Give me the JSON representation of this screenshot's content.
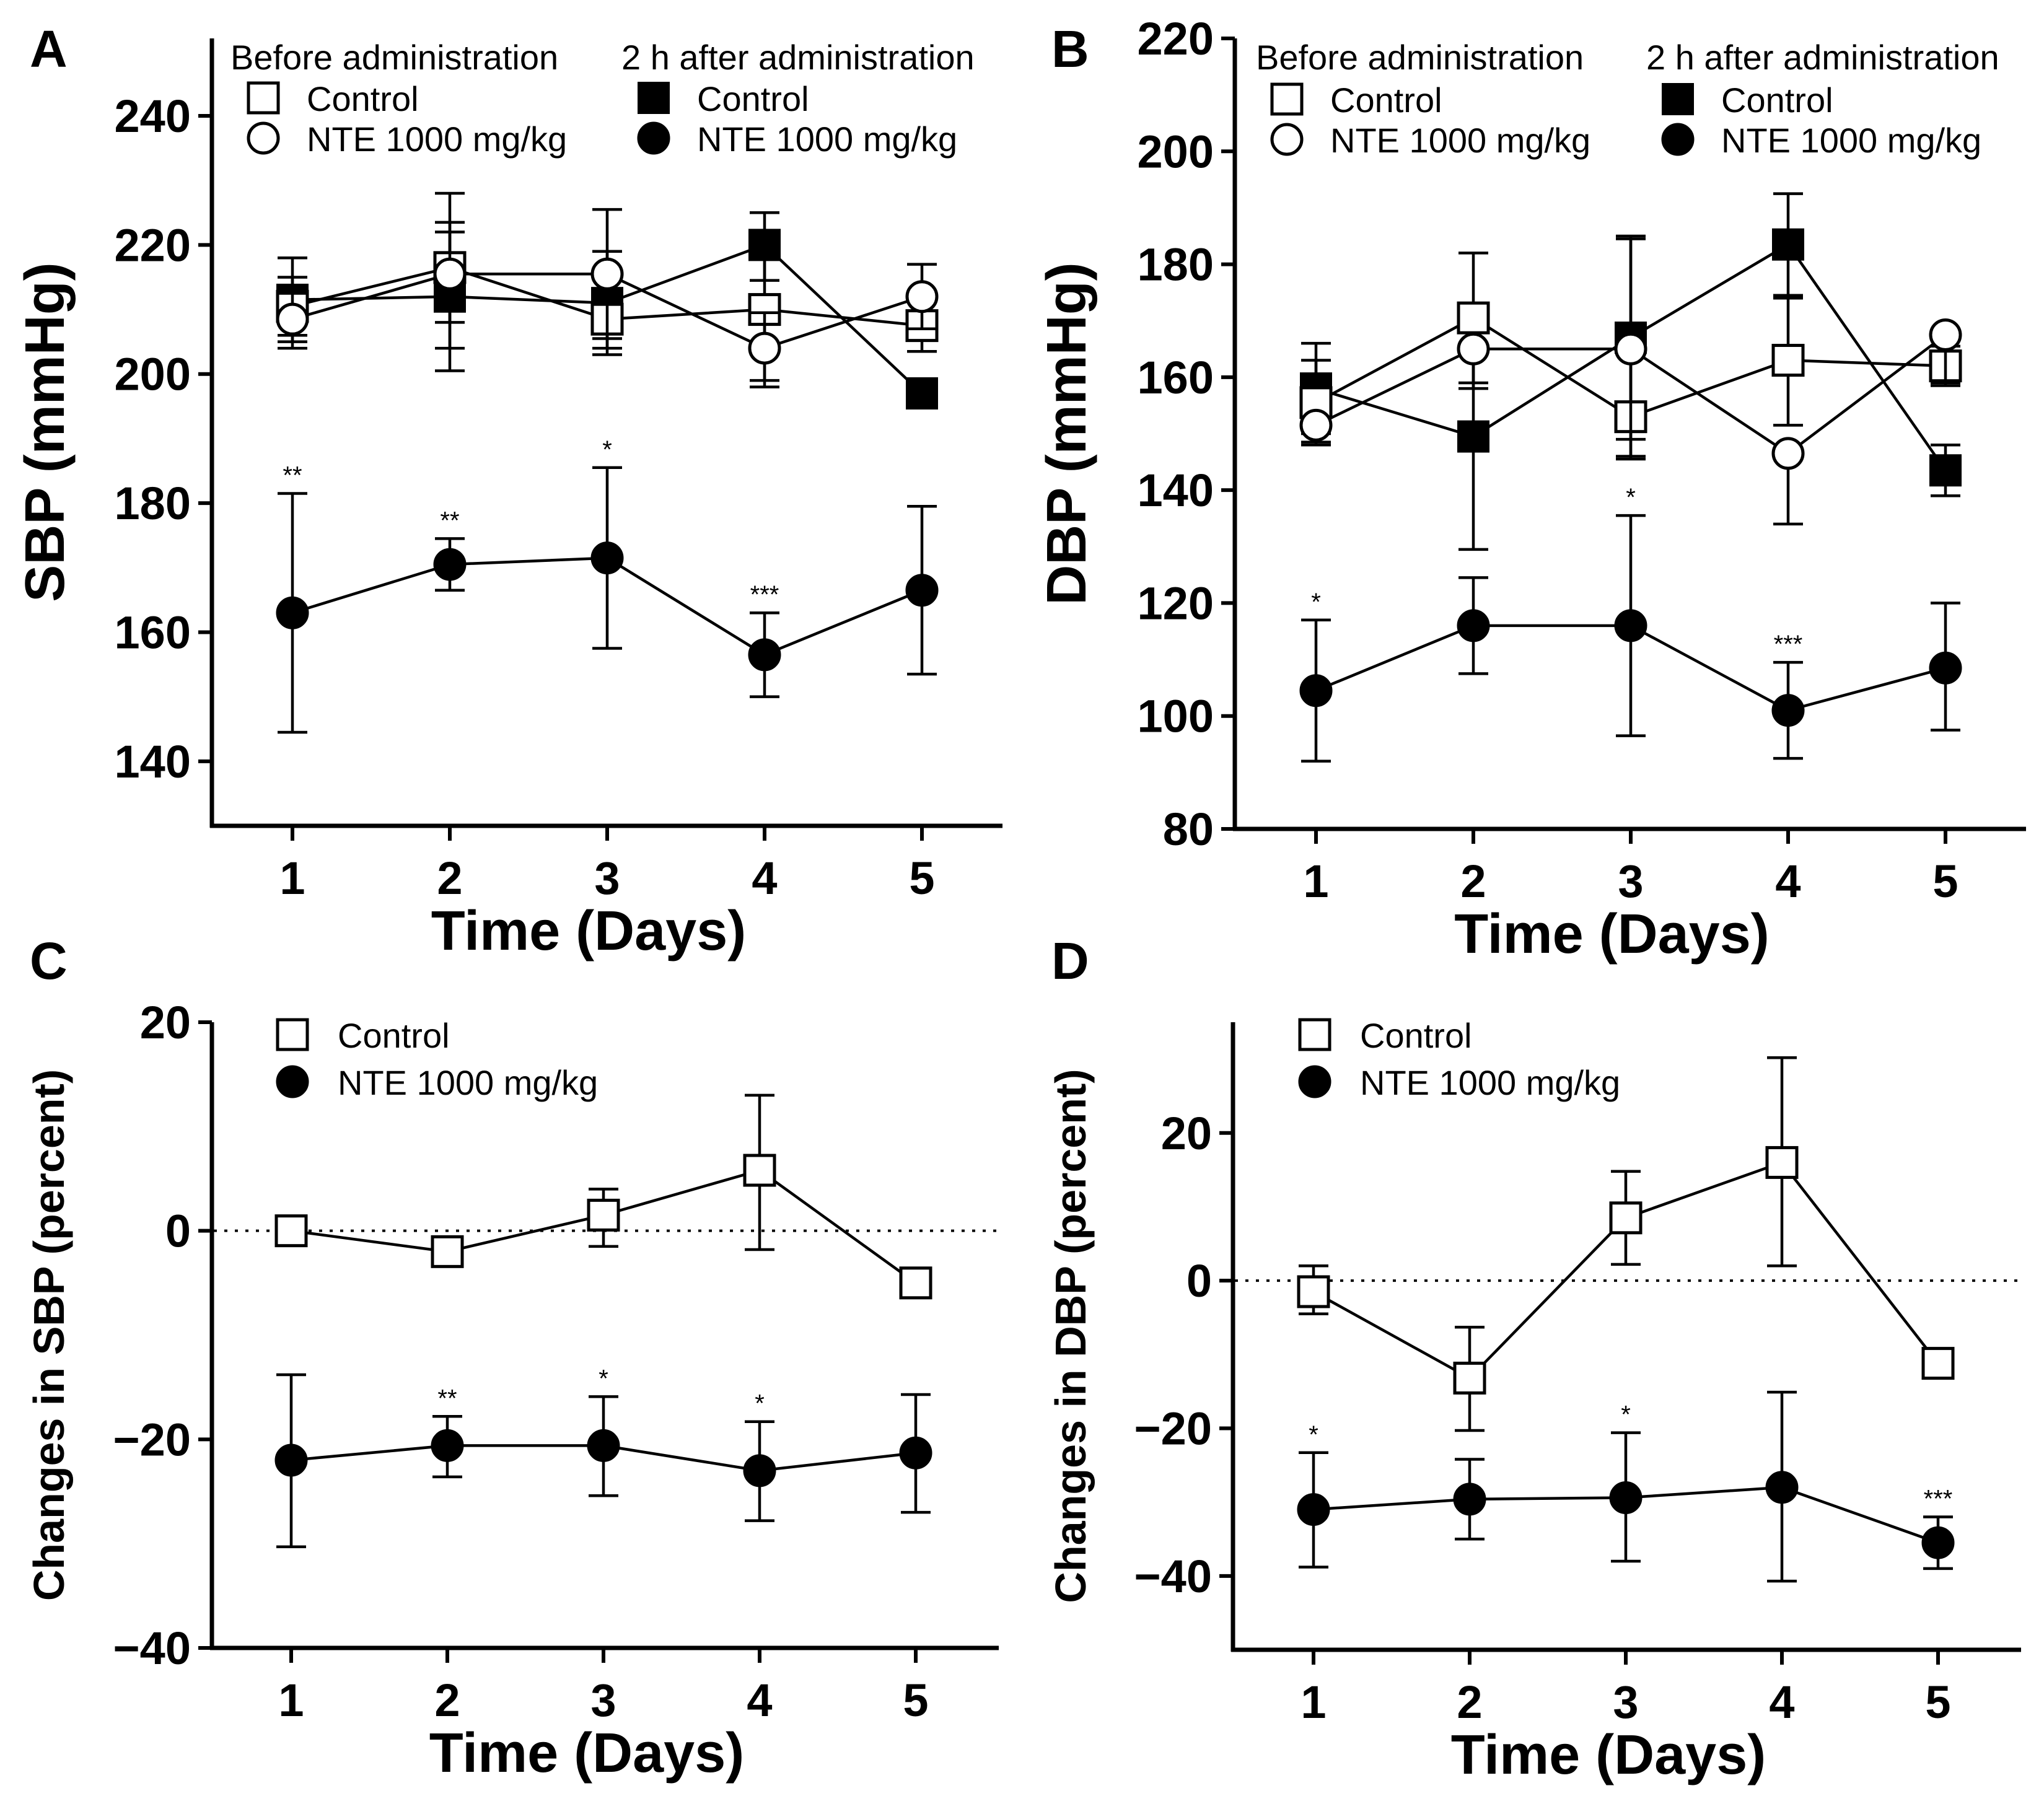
{
  "chart_data": [
    {
      "id": "A",
      "panel_label": "A",
      "type": "line",
      "ylabel": "SBP (mmHg)",
      "xlabel": "Time (Days)",
      "x": [
        1,
        2,
        3,
        4,
        5
      ],
      "x_tick_labels": [
        "1",
        "2",
        "3",
        "4",
        "5"
      ],
      "ylim": [
        130,
        252
      ],
      "y_ticks": [
        140,
        160,
        180,
        200,
        220,
        240
      ],
      "y_tick_labels": [
        "140",
        "160",
        "180",
        "200",
        "220",
        "240"
      ],
      "zero_line": false,
      "legend_groups": [
        {
          "title": "Before administration",
          "entries": [
            "Control",
            "NTE 1000 mg/kg"
          ]
        },
        {
          "title": "2 h after administration",
          "entries": [
            "Control",
            "NTE 1000 mg/kg"
          ]
        }
      ],
      "series": [
        {
          "name": "Control (before administration)",
          "marker": "square-open",
          "values": [
            210.5,
            216.5,
            208.5,
            210,
            207.5
          ],
          "error_lower": [
            206,
            204,
            203,
            199,
            203.5
          ],
          "error_upper": [
            215,
            228,
            215,
            220,
            211.5
          ]
        },
        {
          "name": "NTE 1000 mg/kg (before administration)",
          "marker": "circle-open",
          "values": [
            208.5,
            215.5,
            215.5,
            204,
            212
          ],
          "error_lower": [
            204,
            208,
            204,
            198,
            207
          ],
          "error_upper": [
            212.5,
            222,
            219,
            209.5,
            217
          ]
        },
        {
          "name": "Control (2 h after administration)",
          "marker": "square-filled",
          "values": [
            211.5,
            212,
            211,
            220,
            197
          ],
          "error_lower": [
            205,
            200.5,
            205.5,
            214.5,
            197
          ],
          "error_upper": [
            218,
            223.5,
            225.5,
            225,
            197
          ]
        },
        {
          "name": "NTE 1000 mg/kg (2 h after administration)",
          "marker": "circle-filled",
          "values": [
            163,
            170.5,
            171.5,
            156.5,
            166.5
          ],
          "error_lower": [
            144.5,
            166.5,
            157.5,
            150,
            153.5
          ],
          "error_upper": [
            181.5,
            174.5,
            185.5,
            163,
            179.5
          ]
        }
      ],
      "significance": [
        {
          "x": 1,
          "y": 181.5,
          "label": "**"
        },
        {
          "x": 2,
          "y": 174.5,
          "label": "**"
        },
        {
          "x": 3,
          "y": 185.5,
          "label": "*"
        },
        {
          "x": 4,
          "y": 163,
          "label": "***"
        }
      ]
    },
    {
      "id": "B",
      "panel_label": "B",
      "type": "line",
      "ylabel": "DBP (mmHg)",
      "xlabel": "Time (Days)",
      "x": [
        1,
        2,
        3,
        4,
        5
      ],
      "x_tick_labels": [
        "1",
        "2",
        "3",
        "4",
        "5"
      ],
      "ylim": [
        80,
        220
      ],
      "y_ticks": [
        80,
        100,
        120,
        140,
        160,
        180,
        200,
        220
      ],
      "y_tick_labels": [
        "80",
        "100",
        "120",
        "140",
        "160",
        "180",
        "200",
        "220"
      ],
      "zero_line": false,
      "legend_groups": [
        {
          "title": "Before administration",
          "entries": [
            "Control",
            "NTE 1000 mg/kg"
          ]
        },
        {
          "title": "2 h after administration",
          "entries": [
            "Control",
            "NTE 1000 mg/kg"
          ]
        }
      ],
      "series": [
        {
          "name": "Control (before administration)",
          "marker": "square-open",
          "values": [
            155.5,
            170.5,
            153,
            163,
            162
          ],
          "error_lower": [
            148,
            159,
            146,
            151.5,
            158.5
          ],
          "error_upper": [
            163,
            182,
            184.5,
            174.5,
            165.5
          ]
        },
        {
          "name": "NTE 1000 mg/kg (before administration)",
          "marker": "circle-open",
          "values": [
            151.5,
            165,
            165,
            146.5,
            167.5
          ],
          "error_lower": [
            148.5,
            158,
            145.5,
            134,
            159
          ]
        },
        {
          "name": "Control (2 h after administration)",
          "marker": "square-filled",
          "values": [
            158,
            149.5,
            167,
            183.5,
            143.5
          ],
          "error_lower": [
            150,
            129.5,
            149,
            174,
            139
          ],
          "error_upper": [
            166,
            169.5,
            185,
            192.5,
            148
          ]
        },
        {
          "name": "NTE 1000 mg/kg (2 h after administration)",
          "marker": "circle-filled",
          "values": [
            104.5,
            116,
            116,
            101,
            108.5
          ],
          "error_lower": [
            92,
            107.5,
            96.5,
            92.5,
            97.5
          ],
          "error_upper": [
            117,
            124.5,
            135.5,
            109.5,
            120
          ]
        }
      ],
      "significance": [
        {
          "x": 1,
          "y": 117,
          "label": "*"
        },
        {
          "x": 3,
          "y": 135.5,
          "label": "*"
        },
        {
          "x": 4,
          "y": 109.5,
          "label": "***"
        }
      ]
    },
    {
      "id": "C",
      "panel_label": "C",
      "type": "line",
      "ylabel": "Changes in SBP (percent)",
      "xlabel": "Time (Days)",
      "x": [
        1,
        2,
        3,
        4,
        5
      ],
      "x_tick_labels": [
        "1",
        "2",
        "3",
        "4",
        "5"
      ],
      "ylim": [
        -40,
        20
      ],
      "y_ticks": [
        -40,
        -20,
        0,
        20
      ],
      "y_tick_labels": [
        "−40",
        "−20",
        "0",
        "20"
      ],
      "zero_line": true,
      "legend_groups": [
        {
          "title": "",
          "entries": [
            "Control",
            "NTE 1000 mg/kg"
          ]
        }
      ],
      "series": [
        {
          "name": "Control",
          "marker": "square-open",
          "values": [
            0,
            -2,
            1.5,
            5.8,
            -5
          ],
          "error_lower": [
            -1,
            -2.5,
            -1.5,
            -1.8,
            -5
          ],
          "error_upper": [
            1,
            -1.5,
            4,
            13,
            -5
          ]
        },
        {
          "name": "NTE 1000 mg/kg",
          "marker": "circle-filled",
          "values": [
            -22,
            -20.6,
            -20.6,
            -23,
            -21.3
          ],
          "error_lower": [
            -30.3,
            -23.6,
            -25.4,
            -27.8,
            -27
          ],
          "error_upper": [
            -13.8,
            -17.8,
            -15.9,
            -18.3,
            -15.7
          ]
        }
      ],
      "significance": [
        {
          "x": 2,
          "y": -17.8,
          "label": "**"
        },
        {
          "x": 3,
          "y": -15.9,
          "label": "*"
        },
        {
          "x": 4,
          "y": -18.3,
          "label": "*"
        }
      ]
    },
    {
      "id": "D",
      "panel_label": "D",
      "type": "line",
      "ylabel": "Changes in DBP (percent)",
      "xlabel": "Time (Days)",
      "x": [
        1,
        2,
        3,
        4,
        5
      ],
      "x_tick_labels": [
        "1",
        "2",
        "3",
        "4",
        "5"
      ],
      "ylim": [
        -50,
        35
      ],
      "y_ticks": [
        -40,
        -20,
        0,
        20
      ],
      "y_tick_labels": [
        "−40",
        "−20",
        "0",
        "20"
      ],
      "zero_line": true,
      "legend_groups": [
        {
          "title": "",
          "entries": [
            "Control",
            "NTE 1000 mg/kg"
          ]
        }
      ],
      "series": [
        {
          "name": "Control",
          "marker": "square-open",
          "values": [
            -1.5,
            -13.2,
            8.5,
            16,
            -11.2
          ],
          "error_lower": [
            -4.5,
            -20.3,
            2.2,
            2,
            -11.2
          ],
          "error_upper": [
            2,
            -6.3,
            14.8,
            30.2,
            -11.2
          ]
        },
        {
          "name": "NTE 1000 mg/kg",
          "marker": "circle-filled",
          "values": [
            -31,
            -29.6,
            -29.4,
            -28,
            -35.5
          ],
          "error_lower": [
            -38.8,
            -35,
            -38,
            -40.7,
            -39
          ],
          "error_upper": [
            -23.3,
            -24.2,
            -20.6,
            -15.1,
            -32
          ]
        }
      ],
      "significance": [
        {
          "x": 1,
          "y": -23.3,
          "label": "*"
        },
        {
          "x": 3,
          "y": -20.6,
          "label": "*"
        },
        {
          "x": 5,
          "y": -32,
          "label": "***"
        }
      ]
    }
  ]
}
